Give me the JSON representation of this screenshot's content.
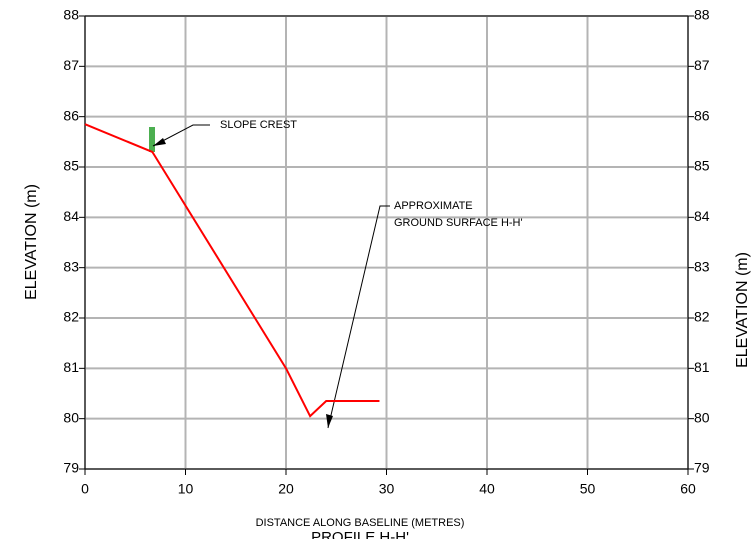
{
  "chart_data": {
    "type": "line",
    "xlabel": "DISTANCE ALONG BASELINE (METRES)",
    "ylabel": "ELEVATION (m)",
    "y2label": "ELEVATION (m)",
    "caption": "PROFILE H-H'",
    "x": [
      0,
      6.7,
      20,
      22.4,
      24,
      29.3
    ],
    "series": [
      {
        "color": "#ff0000",
        "values": [
          85.85,
          85.3,
          81.0,
          80.05,
          80.35,
          80.35
        ]
      }
    ],
    "xlim": [
      0,
      60
    ],
    "xticks": [
      0,
      10,
      20,
      30,
      40,
      50,
      60
    ],
    "ylim": [
      79,
      88
    ],
    "yticks": [
      79,
      80,
      81,
      82,
      83,
      84,
      85,
      86,
      87,
      88
    ],
    "y2lim": [
      79,
      88
    ],
    "y2ticks": [
      79,
      80,
      81,
      82,
      83,
      84,
      85,
      86,
      87,
      88
    ],
    "grid": true,
    "annotations": [
      "SLOPE CREST",
      "APPROXIMATE",
      "GROUND SURFACE H-H'"
    ]
  }
}
